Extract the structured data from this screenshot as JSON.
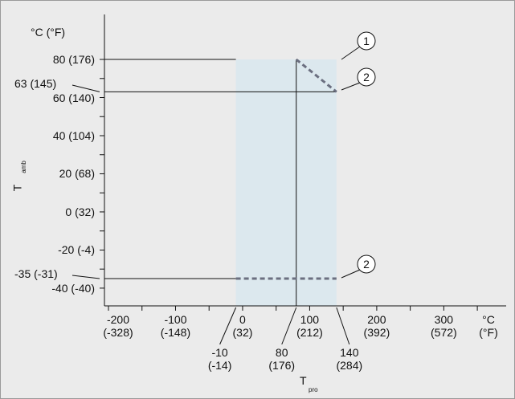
{
  "chart_data": {
    "type": "derating",
    "ylabel": {
      "main": "T",
      "sub": "amb"
    },
    "xlabel": {
      "main": "T",
      "sub": "pro"
    },
    "yunit": "°C (°F)",
    "xunit": "°C\n(°F)",
    "xlim": [
      -206,
      393
    ],
    "ylim": [
      -49.3,
      103.6
    ],
    "yticks": [
      {
        "value": 80,
        "label": "80 (176)"
      },
      {
        "value": 60,
        "label": "60 (140)"
      },
      {
        "value": 40,
        "label": "40 (104)"
      },
      {
        "value": 20,
        "label": "20 (68)"
      },
      {
        "value": 0,
        "label": "0 (32)"
      },
      {
        "value": -20,
        "label": "-20 (-4)"
      },
      {
        "value": -40,
        "label": "-40 (-40)"
      }
    ],
    "yminorticks": [
      70,
      50,
      30,
      10,
      -10,
      -30
    ],
    "xticks": [
      {
        "value": -200,
        "label": "-200\n(-328)"
      },
      {
        "value": -100,
        "label": "-100\n(-148)"
      },
      {
        "value": 0,
        "label": "0\n(32)"
      },
      {
        "value": 100,
        "label": "100\n(212)"
      },
      {
        "value": 200,
        "label": "200\n(392)"
      },
      {
        "value": 300,
        "label": "300\n(572)"
      }
    ],
    "xminorticks": [
      -150,
      -50,
      50,
      150,
      250,
      350
    ],
    "xmarkers": [
      {
        "value": -10,
        "label": "-10\n(-14)"
      },
      {
        "value": 80,
        "label": "80\n(176)"
      },
      {
        "value": 140,
        "label": "140\n(284)"
      }
    ],
    "ymarkers": [
      {
        "value": 63,
        "label": "63 (145)"
      },
      {
        "value": -35,
        "label": "-35 (-31)"
      }
    ],
    "region": {
      "x": [
        -10,
        140
      ],
      "y_top": 80,
      "color": "#dce8ee"
    },
    "hlines": [
      {
        "y": 80,
        "x_end": -10
      },
      {
        "y": 63,
        "x_end": 140
      },
      {
        "y": -35,
        "x_end": -10
      }
    ],
    "vline": {
      "x": 80,
      "y_end": 80
    },
    "dashed": [
      {
        "x": [
          -10,
          140
        ],
        "y": [
          -35,
          -35
        ]
      },
      {
        "x": [
          80,
          140
        ],
        "y": [
          80,
          63
        ]
      }
    ],
    "dash_color": "#6b6f80",
    "callouts": [
      "1",
      "2",
      "2"
    ]
  }
}
